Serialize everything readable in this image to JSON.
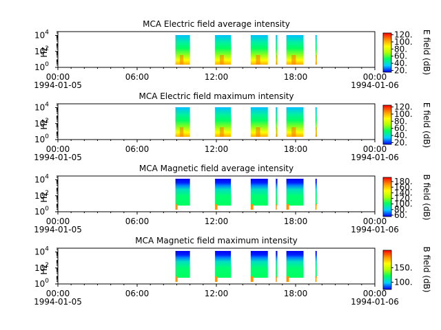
{
  "chart_data": [
    {
      "type": "heatmap",
      "title": "MCA  Electric field average intensity",
      "ylabel": "Hz",
      "y_scale": "log",
      "ylim": [
        1,
        30000
      ],
      "y_ticks": [
        {
          "base": "10",
          "exp": "0"
        },
        {
          "base": "10",
          "exp": "2"
        },
        {
          "base": "10",
          "exp": "4"
        }
      ],
      "x_ticks": [
        {
          "time": "00:00",
          "date": "1994-01-05"
        },
        {
          "time": "06:00",
          "date": ""
        },
        {
          "time": "12:00",
          "date": ""
        },
        {
          "time": "18:00",
          "date": ""
        },
        {
          "time": "00:00",
          "date": "1994-01-06"
        }
      ],
      "data_intervals_hours": [
        [
          8.9,
          10.0
        ],
        [
          11.9,
          13.1
        ],
        [
          14.6,
          15.9
        ],
        [
          16.5,
          16.62
        ],
        [
          17.3,
          18.6
        ],
        [
          19.5,
          19.6
        ]
      ],
      "colorbar": {
        "label": "E field (dB)",
        "range": [
          15,
          125
        ],
        "ticks": [
          "20.",
          "40.",
          "60.",
          "80.",
          "100.",
          "120."
        ],
        "tick_values": [
          20,
          40,
          60,
          80,
          100,
          120
        ]
      }
    },
    {
      "type": "heatmap",
      "title": "MCA  Electric field maximum intensity",
      "ylabel": "Hz",
      "y_scale": "log",
      "ylim": [
        1,
        30000
      ],
      "y_ticks": [
        {
          "base": "10",
          "exp": "0"
        },
        {
          "base": "10",
          "exp": "2"
        },
        {
          "base": "10",
          "exp": "4"
        }
      ],
      "x_ticks": [
        {
          "time": "00:00",
          "date": "1994-01-05"
        },
        {
          "time": "06:00",
          "date": ""
        },
        {
          "time": "12:00",
          "date": ""
        },
        {
          "time": "18:00",
          "date": ""
        },
        {
          "time": "00:00",
          "date": "1994-01-06"
        }
      ],
      "data_intervals_hours": [
        [
          8.9,
          10.0
        ],
        [
          11.9,
          13.1
        ],
        [
          14.6,
          15.9
        ],
        [
          16.5,
          16.62
        ],
        [
          17.3,
          18.6
        ],
        [
          19.5,
          19.6
        ]
      ],
      "colorbar": {
        "label": "E field (dB)",
        "range": [
          15,
          125
        ],
        "ticks": [
          "20.",
          "40.",
          "60.",
          "80.",
          "100.",
          "120."
        ],
        "tick_values": [
          20,
          40,
          60,
          80,
          100,
          120
        ]
      }
    },
    {
      "type": "heatmap",
      "title": "MCA  Magnetic field average intensity",
      "ylabel": "Hz",
      "y_scale": "log",
      "ylim": [
        1,
        30000
      ],
      "y_ticks": [
        {
          "base": "10",
          "exp": "0"
        },
        {
          "base": "10",
          "exp": "2"
        },
        {
          "base": "10",
          "exp": "4"
        }
      ],
      "x_ticks": [
        {
          "time": "00:00",
          "date": "1994-01-05"
        },
        {
          "time": "06:00",
          "date": ""
        },
        {
          "time": "12:00",
          "date": ""
        },
        {
          "time": "18:00",
          "date": ""
        },
        {
          "time": "00:00",
          "date": "1994-01-06"
        }
      ],
      "data_intervals_hours": [
        [
          8.9,
          10.0
        ],
        [
          11.9,
          13.1
        ],
        [
          14.6,
          15.9
        ],
        [
          16.5,
          16.62
        ],
        [
          17.3,
          18.6
        ],
        [
          19.5,
          19.6
        ]
      ],
      "colorbar": {
        "label": "B field (dB)",
        "range": [
          55,
          195
        ],
        "ticks": [
          "60.",
          "80.",
          "100.",
          "120.",
          "140.",
          "160.",
          "180."
        ],
        "tick_values": [
          60,
          80,
          100,
          120,
          140,
          160,
          180
        ]
      }
    },
    {
      "type": "heatmap",
      "title": "MCA  Magnetic field maximum intensity",
      "ylabel": "Hz",
      "y_scale": "log",
      "ylim": [
        1,
        30000
      ],
      "y_ticks": [
        {
          "base": "10",
          "exp": "0"
        },
        {
          "base": "10",
          "exp": "2"
        },
        {
          "base": "10",
          "exp": "4"
        }
      ],
      "x_ticks": [
        {
          "time": "00:00",
          "date": "1994-01-05"
        },
        {
          "time": "06:00",
          "date": ""
        },
        {
          "time": "12:00",
          "date": ""
        },
        {
          "time": "18:00",
          "date": ""
        },
        {
          "time": "00:00",
          "date": "1994-01-06"
        }
      ],
      "data_intervals_hours": [
        [
          8.9,
          10.0
        ],
        [
          11.9,
          13.1
        ],
        [
          14.6,
          15.9
        ],
        [
          16.5,
          16.62
        ],
        [
          17.3,
          18.6
        ],
        [
          19.5,
          19.6
        ]
      ],
      "colorbar": {
        "label": "B field (dB)",
        "range": [
          75,
          210
        ],
        "ticks": [
          "100.",
          "150."
        ],
        "tick_values": [
          100,
          150
        ]
      }
    }
  ],
  "colors": {
    "colormap": [
      "#0000ff",
      "#00d0ff",
      "#00ff60",
      "#b0ff00",
      "#ffff00",
      "#ff9000",
      "#ff0000"
    ],
    "background": "#ffffff",
    "axis": "#000000"
  }
}
